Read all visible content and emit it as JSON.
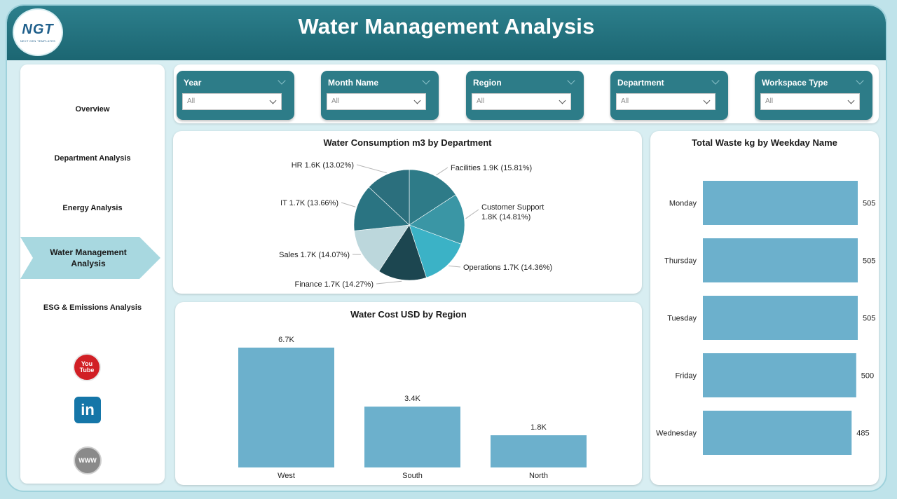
{
  "header": {
    "title": "Water Management Analysis",
    "logo_text": "NGT",
    "logo_subtext": "NEXT GEN TEMPLATES"
  },
  "sidebar": {
    "items": [
      {
        "label": "Overview"
      },
      {
        "label": "Department Analysis"
      },
      {
        "label": "Energy Analysis"
      },
      {
        "label": "Water Management Analysis",
        "active": true
      },
      {
        "label": "ESG & Emissions Analysis"
      }
    ],
    "social": {
      "youtube": "You Tube",
      "linkedin": "in",
      "web": "WWW"
    }
  },
  "filters": [
    {
      "label": "Year",
      "value": "All"
    },
    {
      "label": "Month Name",
      "value": "All"
    },
    {
      "label": "Region",
      "value": "All"
    },
    {
      "label": "Department",
      "value": "All"
    },
    {
      "label": "Workspace Type",
      "value": "All"
    }
  ],
  "colors": {
    "header": "#1f6b77",
    "filter_bg": "#2d7c88",
    "bar": "#6cb0cc",
    "active_nav": "#a8d8e0"
  },
  "chart_data": [
    {
      "type": "pie",
      "title": "Water Consumption m3 by Department",
      "slices": [
        {
          "name": "Facilities",
          "value": 1.9,
          "label": "1.9K",
          "percent": 15.81,
          "color": "#2e7b88"
        },
        {
          "name": "Customer Support",
          "value": 1.8,
          "label": "1.8K",
          "percent": 14.81,
          "color": "#3a96a5"
        },
        {
          "name": "Operations",
          "value": 1.7,
          "label": "1.7K",
          "percent": 14.36,
          "color": "#3bb2c6"
        },
        {
          "name": "Finance",
          "value": 1.7,
          "label": "1.7K",
          "percent": 14.27,
          "color": "#1c4650"
        },
        {
          "name": "Sales",
          "value": 1.7,
          "label": "1.7K",
          "percent": 14.07,
          "color": "#bcd7dc"
        },
        {
          "name": "IT",
          "value": 1.7,
          "label": "1.7K",
          "percent": 13.66,
          "color": "#2a7482"
        },
        {
          "name": "HR",
          "value": 1.6,
          "label": "1.6K",
          "percent": 13.02,
          "color": "#2b6f7d"
        }
      ]
    },
    {
      "type": "bar",
      "title": "Total Waste kg by Weekday Name",
      "orientation": "horizontal",
      "categories": [
        "Monday",
        "Thursday",
        "Tuesday",
        "Friday",
        "Wednesday"
      ],
      "values": [
        505,
        505,
        505,
        500,
        485
      ],
      "xlim": [
        0,
        520
      ]
    },
    {
      "type": "bar",
      "title": "Water Cost USD by Region",
      "orientation": "vertical",
      "categories": [
        "West",
        "South",
        "North"
      ],
      "values": [
        6.7,
        3.4,
        1.8
      ],
      "value_labels": [
        "6.7K",
        "3.4K",
        "1.8K"
      ],
      "ylim": [
        0,
        6.7
      ]
    }
  ]
}
